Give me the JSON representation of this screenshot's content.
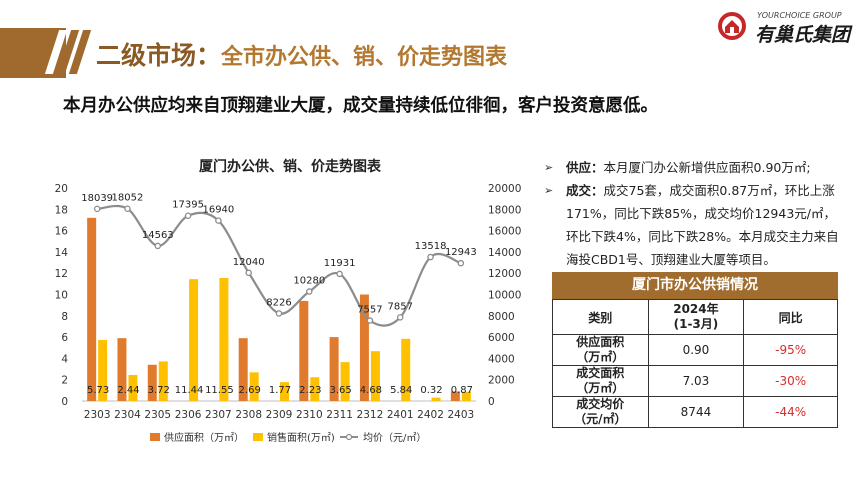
{
  "header": {
    "title_main": "二级市场：",
    "title_sub": "全市办公供、销、价走势图表",
    "logo_en": "YOURCHOICE GROUP",
    "logo_cn": "有巢氏集团"
  },
  "headline": "本月办公供应均来自顶翔建业大厦，成交量持续低位徘徊，客户投资意愿低。",
  "chart_data": {
    "type": "bar",
    "title": "厦门办公供、销、价走势图表",
    "categories": [
      "2303",
      "2304",
      "2305",
      "2306",
      "2307",
      "2308",
      "2309",
      "2310",
      "2311",
      "2312",
      "2401",
      "2402",
      "2403"
    ],
    "series": [
      {
        "name": "供应面积（万㎡）",
        "type": "bar",
        "axis": "left",
        "color": "#e07b2e",
        "values": [
          17.2,
          5.9,
          3.4,
          0,
          0,
          5.9,
          0,
          9.4,
          6.0,
          10.0,
          0,
          0,
          0.9
        ]
      },
      {
        "name": "销售面积(万㎡)",
        "type": "bar",
        "axis": "left",
        "color": "#ffc000",
        "values": [
          5.73,
          2.44,
          3.72,
          11.44,
          11.55,
          2.69,
          1.77,
          2.23,
          3.65,
          4.68,
          5.84,
          0.32,
          0.87
        ]
      },
      {
        "name": "均价（元/㎡）",
        "type": "line",
        "axis": "right",
        "color": "#8c8c8c",
        "values": [
          18039,
          18052,
          14563,
          17395,
          16940,
          12040,
          8226,
          10280,
          11931,
          7557,
          7857,
          13518,
          12943
        ]
      }
    ],
    "ylim_left": [
      0,
      20
    ],
    "yticks_left": [
      0,
      2,
      4,
      6,
      8,
      10,
      12,
      14,
      16,
      18,
      20
    ],
    "ylim_right": [
      0,
      20000
    ],
    "yticks_right": [
      0,
      2000,
      4000,
      6000,
      8000,
      10000,
      12000,
      14000,
      16000,
      18000,
      20000
    ],
    "legend_position": "bottom",
    "grid": false
  },
  "notes": [
    {
      "label": "供应：",
      "text": "本月厦门办公新增供应面积0.90万㎡;"
    },
    {
      "label": "成交：",
      "text": "成交75套，成交面积0.87万㎡，环比上涨171%，同比下跌85%，成交均价12943元/㎡，环比下跌4%，同比下跌28%。本月成交主力来自海投CBD1号、顶翔建业大厦等项目。"
    }
  ],
  "table": {
    "title": "厦门市办公供销情况",
    "headers": [
      "类别",
      "2024年\n(1-3月)",
      "同比"
    ],
    "rows": [
      {
        "category": "供应面积\n（万㎡）",
        "value": "0.90",
        "yoy": "-95%"
      },
      {
        "category": "成交面积\n（万㎡）",
        "value": "7.03",
        "yoy": "-30%"
      },
      {
        "category": "成交均价\n（元/㎡）",
        "value": "8744",
        "yoy": "-44%"
      }
    ]
  },
  "colors": {
    "brand": "#a06a2e",
    "negative": "#d32f2f"
  }
}
